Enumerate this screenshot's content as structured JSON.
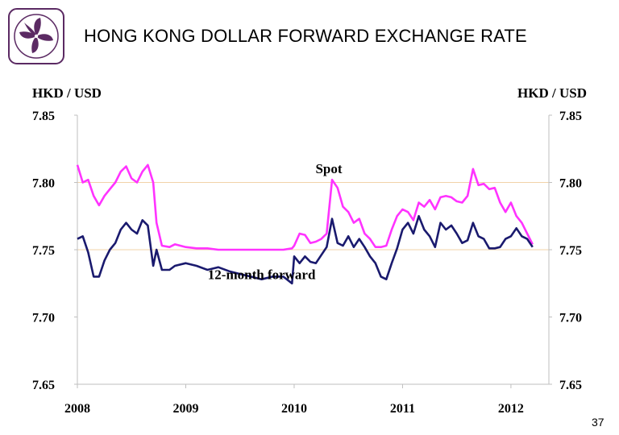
{
  "slide": {
    "title": "HONG KONG DOLLAR FORWARD EXCHANGE RATE",
    "page_number": "37",
    "logo_icon": "bauhinia-logo-icon"
  },
  "colors": {
    "spot": "#ff33ff",
    "forward": "#1a1a6e",
    "gridline": "#f2d3a8",
    "axis": "#bfbfbf",
    "logo": "#5b2a63"
  },
  "chart_data": {
    "type": "line",
    "left_axis_label": "HKD / USD",
    "right_axis_label": "HKD / USD",
    "ylim": [
      7.65,
      7.85
    ],
    "yticks": [
      "7.85",
      "7.80",
      "7.75",
      "7.70",
      "7.65"
    ],
    "xlim": [
      2008.0,
      2012.35
    ],
    "xticks": [
      "2008",
      "2009",
      "2010",
      "2011",
      "2012"
    ],
    "grid_lines_at": [
      7.8,
      7.75
    ],
    "annotations": [
      {
        "text": "Spot",
        "x": 2010.32,
        "y": 7.807
      },
      {
        "text": "12-month forward",
        "x": 2009.7,
        "y": 7.728
      }
    ],
    "series": [
      {
        "name": "Spot",
        "x": [
          2008.0,
          2008.05,
          2008.1,
          2008.15,
          2008.2,
          2008.25,
          2008.3,
          2008.35,
          2008.4,
          2008.45,
          2008.5,
          2008.55,
          2008.6,
          2008.65,
          2008.7,
          2008.73,
          2008.78,
          2008.85,
          2008.9,
          2009.0,
          2009.1,
          2009.2,
          2009.3,
          2009.4,
          2009.5,
          2009.6,
          2009.7,
          2009.8,
          2009.9,
          2009.98,
          2010.0,
          2010.05,
          2010.1,
          2010.15,
          2010.2,
          2010.25,
          2010.3,
          2010.35,
          2010.4,
          2010.45,
          2010.5,
          2010.55,
          2010.6,
          2010.65,
          2010.7,
          2010.75,
          2010.8,
          2010.85,
          2010.9,
          2010.95,
          2011.0,
          2011.05,
          2011.1,
          2011.15,
          2011.2,
          2011.25,
          2011.3,
          2011.35,
          2011.4,
          2011.45,
          2011.5,
          2011.55,
          2011.6,
          2011.65,
          2011.7,
          2011.75,
          2011.8,
          2011.85,
          2011.9,
          2011.95,
          2012.0,
          2012.05,
          2012.1,
          2012.15,
          2012.2
        ],
        "values": [
          7.813,
          7.8,
          7.802,
          7.79,
          7.783,
          7.79,
          7.795,
          7.8,
          7.808,
          7.812,
          7.803,
          7.8,
          7.808,
          7.813,
          7.8,
          7.77,
          7.753,
          7.752,
          7.754,
          7.752,
          7.751,
          7.751,
          7.75,
          7.75,
          7.75,
          7.75,
          7.75,
          7.75,
          7.75,
          7.751,
          7.753,
          7.762,
          7.761,
          7.755,
          7.756,
          7.758,
          7.762,
          7.802,
          7.796,
          7.782,
          7.778,
          7.77,
          7.773,
          7.762,
          7.758,
          7.752,
          7.752,
          7.753,
          7.765,
          7.775,
          7.78,
          7.778,
          7.772,
          7.785,
          7.782,
          7.787,
          7.78,
          7.789,
          7.79,
          7.789,
          7.786,
          7.785,
          7.79,
          7.81,
          7.798,
          7.799,
          7.795,
          7.796,
          7.785,
          7.778,
          7.785,
          7.775,
          7.77,
          7.762,
          7.754
        ]
      },
      {
        "name": "12-month forward",
        "x": [
          2008.0,
          2008.05,
          2008.1,
          2008.15,
          2008.2,
          2008.25,
          2008.3,
          2008.35,
          2008.4,
          2008.45,
          2008.5,
          2008.55,
          2008.6,
          2008.65,
          2008.7,
          2008.73,
          2008.78,
          2008.85,
          2008.9,
          2009.0,
          2009.1,
          2009.2,
          2009.3,
          2009.4,
          2009.5,
          2009.6,
          2009.7,
          2009.8,
          2009.9,
          2009.98,
          2010.0,
          2010.05,
          2010.1,
          2010.15,
          2010.2,
          2010.25,
          2010.3,
          2010.35,
          2010.4,
          2010.45,
          2010.5,
          2010.55,
          2010.6,
          2010.65,
          2010.7,
          2010.75,
          2010.8,
          2010.85,
          2010.9,
          2010.95,
          2011.0,
          2011.05,
          2011.1,
          2011.15,
          2011.2,
          2011.25,
          2011.3,
          2011.35,
          2011.4,
          2011.45,
          2011.5,
          2011.55,
          2011.6,
          2011.65,
          2011.7,
          2011.75,
          2011.8,
          2011.85,
          2011.9,
          2011.95,
          2012.0,
          2012.05,
          2012.1,
          2012.15,
          2012.2
        ],
        "values": [
          7.758,
          7.76,
          7.748,
          7.73,
          7.73,
          7.742,
          7.75,
          7.755,
          7.765,
          7.77,
          7.765,
          7.762,
          7.772,
          7.768,
          7.738,
          7.75,
          7.735,
          7.735,
          7.738,
          7.74,
          7.738,
          7.735,
          7.737,
          7.734,
          7.732,
          7.73,
          7.728,
          7.73,
          7.73,
          7.725,
          7.745,
          7.74,
          7.745,
          7.741,
          7.74,
          7.746,
          7.752,
          7.773,
          7.755,
          7.753,
          7.76,
          7.752,
          7.758,
          7.752,
          7.745,
          7.74,
          7.73,
          7.728,
          7.74,
          7.751,
          7.765,
          7.77,
          7.762,
          7.775,
          7.765,
          7.76,
          7.752,
          7.77,
          7.765,
          7.768,
          7.762,
          7.755,
          7.757,
          7.77,
          7.76,
          7.758,
          7.751,
          7.751,
          7.752,
          7.758,
          7.76,
          7.766,
          7.76,
          7.758,
          7.752
        ]
      }
    ]
  }
}
